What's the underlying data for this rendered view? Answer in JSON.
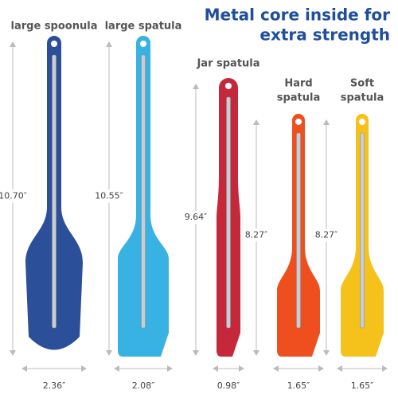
{
  "title": {
    "lines": [
      "Metal core inside for",
      "extra strength"
    ]
  },
  "items": [
    {
      "name": [
        "large spoonula"
      ],
      "height": "10.70″",
      "width": "2.36″"
    },
    {
      "name": [
        "large spatula"
      ],
      "height": "10.55″",
      "width": "2.08″"
    },
    {
      "name": [
        "Jar spatula"
      ],
      "height": "9.64″",
      "width": "0.98″"
    },
    {
      "name": [
        "Hard",
        "spatula"
      ],
      "height": "8.27″",
      "width": "1.65″"
    },
    {
      "name": [
        "Soft",
        "spatula"
      ],
      "height": "8.27″",
      "width": "1.65″"
    }
  ]
}
